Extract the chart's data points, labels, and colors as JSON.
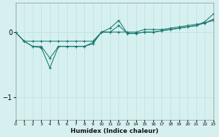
{
  "xlabel": "Humidex (Indice chaleur)",
  "ylabel": "",
  "background_color": "#d6f0f0",
  "grid_color": "#b8dede",
  "line_color": "#1a7a6e",
  "xlim": [
    0,
    23
  ],
  "ylim": [
    -1.35,
    0.45
  ],
  "yticks": [
    0,
    -1
  ],
  "xticks": [
    0,
    1,
    2,
    3,
    4,
    5,
    6,
    7,
    8,
    9,
    10,
    11,
    12,
    13,
    14,
    15,
    16,
    17,
    18,
    19,
    20,
    21,
    22,
    23
  ],
  "series": [
    {
      "x": [
        0,
        1,
        2,
        3,
        4,
        5,
        6,
        7,
        8,
        9,
        10,
        11,
        12,
        13,
        14,
        15,
        16,
        17,
        18,
        19,
        20,
        21,
        22,
        23
      ],
      "y": [
        0.0,
        -0.14,
        -0.14,
        -0.14,
        -0.14,
        -0.14,
        -0.14,
        -0.14,
        -0.14,
        -0.14,
        0.0,
        0.0,
        0.0,
        0.0,
        0.0,
        0.04,
        0.04,
        0.04,
        0.06,
        0.08,
        0.1,
        0.12,
        0.14,
        0.18
      ]
    },
    {
      "x": [
        0,
        1,
        2,
        3,
        4,
        5,
        6,
        7,
        8,
        9,
        10,
        11,
        12,
        13,
        14,
        15,
        16,
        17,
        18,
        19,
        20,
        21,
        22,
        23
      ],
      "y": [
        0.0,
        -0.14,
        -0.22,
        -0.22,
        -0.4,
        -0.22,
        -0.22,
        -0.22,
        -0.22,
        -0.16,
        0.0,
        0.0,
        0.1,
        -0.02,
        -0.02,
        0.0,
        0.0,
        0.02,
        0.04,
        0.06,
        0.08,
        0.1,
        0.14,
        0.2
      ]
    },
    {
      "x": [
        0,
        1,
        2,
        3,
        4,
        5,
        6,
        7,
        8,
        9,
        10,
        11,
        12,
        13,
        14,
        15,
        16,
        17,
        18,
        19,
        20,
        21,
        22,
        23
      ],
      "y": [
        0.0,
        -0.14,
        -0.22,
        -0.24,
        -0.55,
        -0.22,
        -0.22,
        -0.22,
        -0.22,
        -0.18,
        0.0,
        0.06,
        0.18,
        -0.02,
        -0.02,
        0.0,
        0.0,
        0.02,
        0.04,
        0.06,
        0.08,
        0.1,
        0.16,
        0.28
      ]
    }
  ]
}
